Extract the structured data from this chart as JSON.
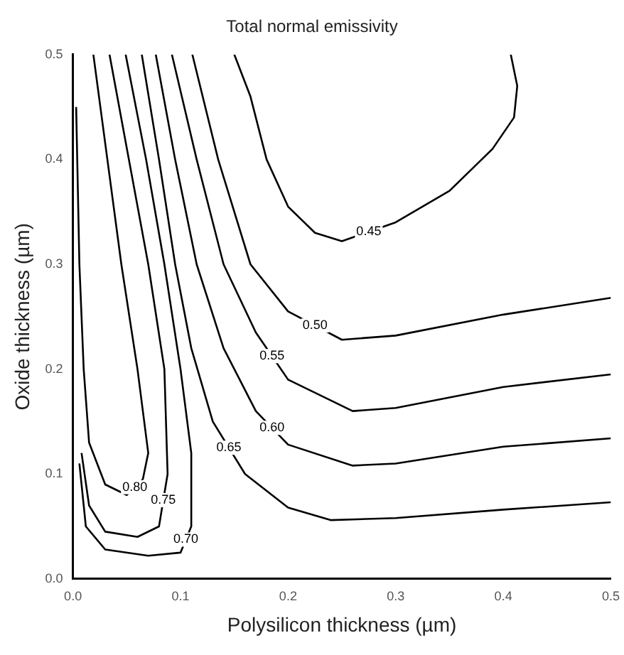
{
  "chart_data": {
    "type": "line",
    "title": "Total normal emissivity",
    "xlabel": "Polysilicon thickness (µm)",
    "ylabel": "Oxide thickness (µm)",
    "xlim": [
      0,
      0.5
    ],
    "ylim": [
      0,
      0.5
    ],
    "xticks": [
      {
        "value": 0,
        "label": "0.0"
      },
      0.1,
      0.2,
      0.3,
      0.4,
      0.5
    ],
    "yticks": [
      {
        "value": 0,
        "label": "0.0"
      },
      0.1,
      0.2,
      0.3,
      0.4,
      0.5
    ],
    "grid": false,
    "legend": false,
    "marker": "none",
    "line_style": "solid",
    "series": [
      {
        "name": "0.80",
        "color": "#000000",
        "x": [
          0.003,
          0.006,
          0.01,
          0.015,
          0.03,
          0.05,
          0.065,
          0.07,
          0.06,
          0.045,
          0.032,
          0.019
        ],
        "values": [
          0.45,
          0.3,
          0.2,
          0.13,
          0.09,
          0.08,
          0.095,
          0.12,
          0.2,
          0.3,
          0.4,
          0.5
        ]
      },
      {
        "name": "0.75",
        "color": "#000000",
        "x": [
          0.008,
          0.015,
          0.03,
          0.06,
          0.08,
          0.088,
          0.085,
          0.07,
          0.052,
          0.034
        ],
        "values": [
          0.12,
          0.07,
          0.045,
          0.04,
          0.05,
          0.1,
          0.2,
          0.3,
          0.4,
          0.5
        ]
      },
      {
        "name": "0.70",
        "color": "#000000",
        "x": [
          0.006,
          0.012,
          0.03,
          0.07,
          0.1,
          0.11,
          0.11,
          0.1,
          0.085,
          0.068,
          0.049
        ],
        "values": [
          0.11,
          0.05,
          0.028,
          0.022,
          0.025,
          0.05,
          0.12,
          0.2,
          0.3,
          0.4,
          0.5
        ]
      },
      {
        "name": "0.65",
        "color": "#000000",
        "x": [
          0.064,
          0.08,
          0.095,
          0.11,
          0.13,
          0.16,
          0.2,
          0.24,
          0.3,
          0.4,
          0.5
        ],
        "values": [
          0.5,
          0.4,
          0.3,
          0.22,
          0.15,
          0.1,
          0.068,
          0.056,
          0.058,
          0.066,
          0.073
        ]
      },
      {
        "name": "0.60",
        "color": "#000000",
        "x": [
          0.077,
          0.095,
          0.115,
          0.14,
          0.17,
          0.2,
          0.26,
          0.3,
          0.4,
          0.5
        ],
        "values": [
          0.5,
          0.4,
          0.3,
          0.22,
          0.16,
          0.128,
          0.108,
          0.11,
          0.126,
          0.134
        ]
      },
      {
        "name": "0.55",
        "color": "#000000",
        "x": [
          0.092,
          0.115,
          0.14,
          0.17,
          0.2,
          0.26,
          0.3,
          0.4,
          0.5
        ],
        "values": [
          0.5,
          0.4,
          0.3,
          0.235,
          0.19,
          0.16,
          0.163,
          0.183,
          0.195
        ]
      },
      {
        "name": "0.50",
        "color": "#000000",
        "x": [
          0.111,
          0.135,
          0.165,
          0.2,
          0.25,
          0.3,
          0.4,
          0.5
        ],
        "values": [
          0.5,
          0.4,
          0.3,
          0.255,
          0.228,
          0.232,
          0.252,
          0.268
        ]
      },
      {
        "name": "0.45",
        "color": "#000000",
        "x": [
          0.15,
          0.165,
          0.18,
          0.2,
          0.225,
          0.25,
          0.3,
          0.35,
          0.39,
          0.41,
          0.413,
          0.407
        ],
        "values": [
          0.5,
          0.46,
          0.4,
          0.355,
          0.33,
          0.322,
          0.34,
          0.37,
          0.41,
          0.44,
          0.47,
          0.5
        ]
      }
    ]
  }
}
